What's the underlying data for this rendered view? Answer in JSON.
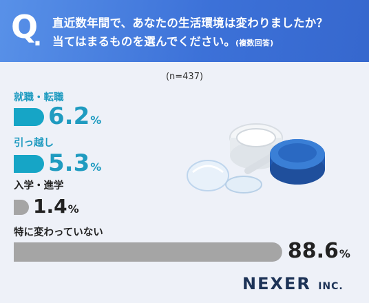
{
  "header": {
    "q_mark": "Q",
    "q_dot": ".",
    "question_line1": "直近数年間で、あなたの生活環境は変わりましたか？",
    "question_line2": "当てはまるものを選んでください。",
    "question_note": "(複数回答)"
  },
  "sample_size": "(n=437)",
  "brand": {
    "name": "NEXER",
    "suffix": "INC."
  },
  "colors": {
    "header_bg": "#3b6fd6",
    "bar_teal": "#16a5c6",
    "bar_gray": "#a5a5a5",
    "text_teal": "#1f9bc0",
    "text_dark": "#222222"
  },
  "chart_data": {
    "type": "bar",
    "orientation": "horizontal",
    "categories": [
      "就職・転職",
      "引っ越し",
      "入学・進学",
      "特に変わっていない"
    ],
    "values": [
      6.2,
      5.3,
      1.4,
      88.6
    ],
    "value_labels": [
      "6.2",
      "5.3",
      "1.4",
      "88.6"
    ],
    "unit": "%",
    "xlim": [
      0,
      100
    ],
    "grid": false,
    "legend": "none"
  }
}
